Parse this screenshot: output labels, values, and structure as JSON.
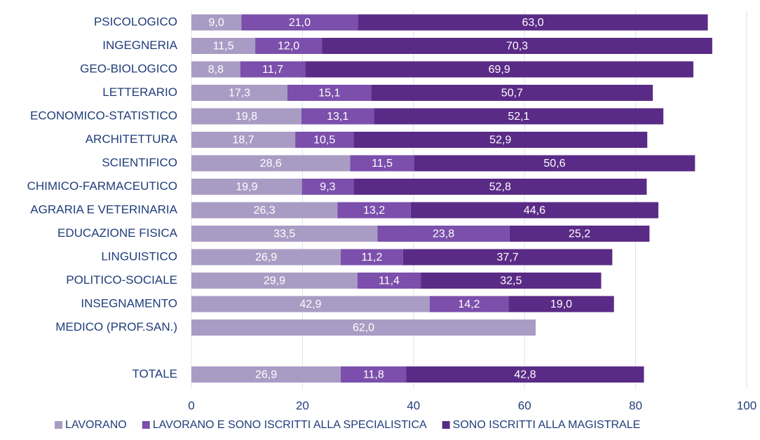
{
  "chart_data": {
    "type": "stacked-barh",
    "categories": [
      "PSICOLOGICO",
      "INGEGNERIA",
      "GEO-BIOLOGICO",
      "LETTERARIO",
      "ECONOMICO-STATISTICO",
      "ARCHITETTURA",
      "SCIENTIFICO",
      "CHIMICO-FARMACEUTICO",
      "AGRARIA E VETERINARIA",
      "EDUCAZIONE FISICA",
      "LINGUISTICO",
      "POLITICO-SOCIALE",
      "INSEGNAMENTO",
      "MEDICO (PROF.SAN.)",
      null,
      "TOTALE"
    ],
    "series": [
      {
        "name": "LAVORANO",
        "color": "#a99cc4",
        "values": [
          9.0,
          11.5,
          8.8,
          17.3,
          19.8,
          18.7,
          28.6,
          19.9,
          26.3,
          33.5,
          26.9,
          29.9,
          42.9,
          62.0,
          null,
          26.9
        ],
        "value_labels": [
          "9,0",
          "11,5",
          "8,8",
          "17,3",
          "19,8",
          "18,7",
          "28,6",
          "19,9",
          "26,3",
          "33,5",
          "26,9",
          "29,9",
          "42,9",
          "62,0",
          null,
          "26,9"
        ]
      },
      {
        "name": "LAVORANO E SONO ISCRITTI ALLA SPECIALISTICA",
        "color": "#7b4fab",
        "values": [
          21.0,
          12.0,
          11.7,
          15.1,
          13.1,
          10.5,
          11.5,
          9.3,
          13.2,
          23.8,
          11.2,
          11.4,
          14.2,
          null,
          null,
          11.8
        ],
        "value_labels": [
          "21,0",
          "12,0",
          "11,7",
          "15,1",
          "13,1",
          "10,5",
          "11,5",
          "9,3",
          "13,2",
          "23,8",
          "11,2",
          "11,4",
          "14,2",
          null,
          null,
          "11,8"
        ]
      },
      {
        "name": "SONO ISCRITTI ALLA MAGISTRALE",
        "color": "#5a2b86",
        "values": [
          63.0,
          70.3,
          69.9,
          50.7,
          52.1,
          52.9,
          50.6,
          52.8,
          44.6,
          25.2,
          37.7,
          32.5,
          19.0,
          null,
          null,
          42.8
        ],
        "value_labels": [
          "63,0",
          "70,3",
          "69,9",
          "50,7",
          "52,1",
          "52,9",
          "50,6",
          "52,8",
          "44,6",
          "25,2",
          "37,7",
          "32,5",
          "19,0",
          null,
          null,
          "42,8"
        ]
      }
    ],
    "xlim": [
      0,
      100
    ],
    "xticks": [
      0,
      20,
      40,
      60,
      80,
      100
    ],
    "grid": true,
    "legend": "bottom"
  }
}
